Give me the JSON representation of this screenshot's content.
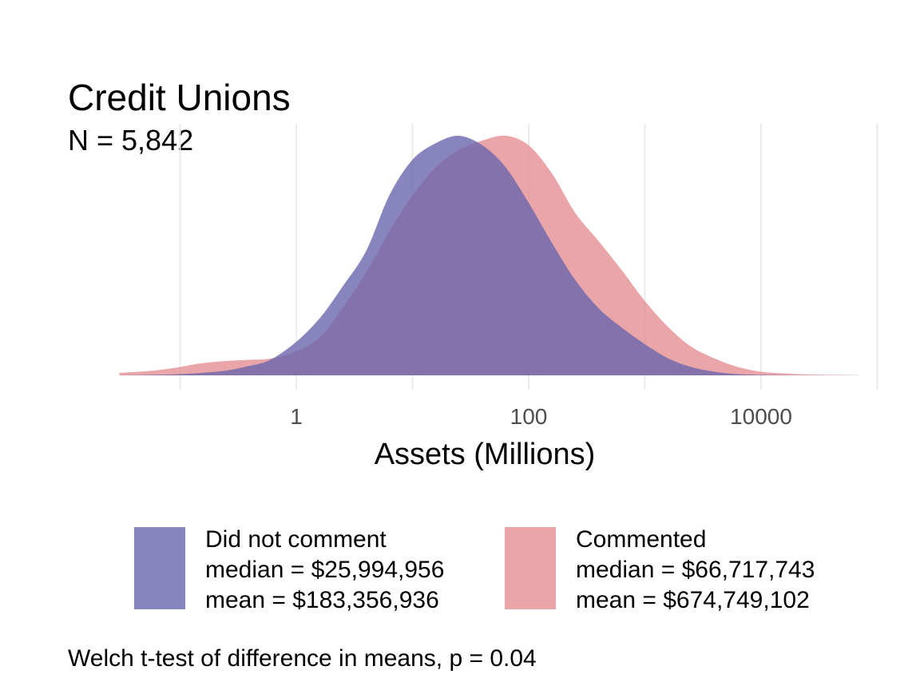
{
  "chart_data": {
    "type": "area",
    "title": "Credit Unions",
    "subtitle": "N = 5,842",
    "xlabel": "Assets (Millions)",
    "ylabel": "",
    "x_scale": "log10",
    "x_ticks": [
      1,
      100,
      10000
    ],
    "x_tick_labels": [
      "1",
      "100",
      "10000"
    ],
    "grid": true,
    "legend_position": "bottom",
    "caption": "Welch t-test of difference in means, p = 0.04",
    "series": [
      {
        "name": "Did not comment",
        "stat_lines": [
          "median = $25,994,956",
          "mean = $183,356,936"
        ],
        "color": "#6a65ad",
        "x": [
          0.03,
          0.06,
          0.1,
          0.15,
          0.25,
          0.4,
          0.6,
          1,
          1.6,
          2.5,
          4,
          6.3,
          10,
          16,
          25,
          40,
          63,
          100,
          160,
          250,
          400,
          630,
          1000,
          1600,
          2500,
          4000,
          6300,
          10000,
          16000,
          25000,
          40000,
          70000
        ],
        "y": [
          0.0,
          0.002,
          0.005,
          0.01,
          0.02,
          0.04,
          0.065,
          0.14,
          0.24,
          0.37,
          0.52,
          0.75,
          0.9,
          0.97,
          1.0,
          0.96,
          0.87,
          0.72,
          0.55,
          0.4,
          0.28,
          0.2,
          0.13,
          0.07,
          0.035,
          0.015,
          0.005,
          0.002,
          0.001,
          0.0,
          0.0,
          0.0
        ]
      },
      {
        "name": "Commented",
        "stat_lines": [
          "median = $66,717,743",
          "mean = $674,749,102"
        ],
        "color": "#e58f94",
        "x": [
          0.03,
          0.06,
          0.1,
          0.15,
          0.25,
          0.4,
          0.6,
          1,
          1.6,
          2.5,
          4,
          6.3,
          10,
          16,
          25,
          40,
          63,
          100,
          160,
          250,
          400,
          630,
          1000,
          1600,
          2500,
          4000,
          6300,
          10000,
          16000,
          25000,
          40000,
          70000
        ],
        "y": [
          0.01,
          0.02,
          0.035,
          0.05,
          0.06,
          0.065,
          0.07,
          0.1,
          0.16,
          0.28,
          0.43,
          0.6,
          0.75,
          0.87,
          0.94,
          0.98,
          1.0,
          0.96,
          0.84,
          0.68,
          0.56,
          0.44,
          0.31,
          0.2,
          0.12,
          0.07,
          0.035,
          0.015,
          0.008,
          0.004,
          0.002,
          0.001
        ]
      }
    ]
  }
}
